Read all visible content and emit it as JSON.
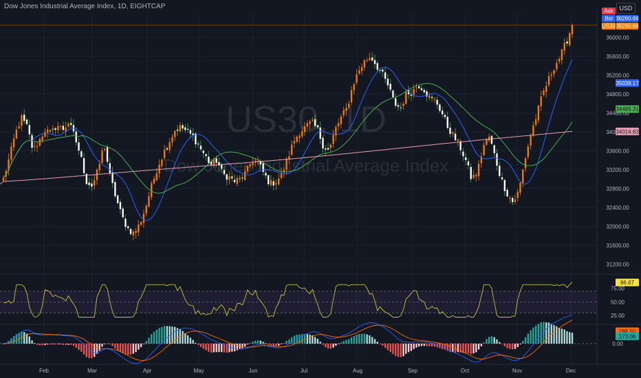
{
  "header": {
    "title": "Dow Jones Industrial Average Index, 1D, EIGHTCAP",
    "currency": "USD"
  },
  "watermark": {
    "symbol": "US30, 1D",
    "name": "Dow Jones Industrial Average Index"
  },
  "quote_tags": [
    {
      "label": "Ask",
      "value": "",
      "color": "#f23645"
    },
    {
      "label": "Bid",
      "value": "36260.66",
      "color": "#2962ff"
    },
    {
      "label": "US30",
      "value": "36260.66",
      "color": "#f57c00"
    }
  ],
  "colors": {
    "up": "#f57c00",
    "down": "#ffffff",
    "ma_fast": "#2962ff",
    "ma_mid": "#4caf50",
    "ma_slow": "#e8a0b0",
    "rsi": "#c9c23a",
    "macd": "#2962ff",
    "signal": "#ff6d00"
  },
  "chart_data": [
    {
      "type": "candlestick",
      "title": "Dow Jones Industrial Average Index, 1D, EIGHTCAP",
      "x_ticks": [
        "Feb",
        "Mar",
        "Apr",
        "May",
        "Jun",
        "Jul",
        "Aug",
        "Sep",
        "Oct",
        "Nov",
        "Dec"
      ],
      "y_ticks": [
        "36000.00",
        "35600.00",
        "35200.00",
        "34800.00",
        "34400.00",
        "34000.00",
        "33600.00",
        "33200.00",
        "32800.00",
        "32400.00",
        "32000.00",
        "31600.00",
        "31200.00"
      ],
      "ylim": [
        31000,
        36500
      ],
      "close_path": [
        33000,
        33450,
        33950,
        34300,
        34100,
        33600,
        33800,
        34050,
        33950,
        34150,
        34050,
        34200,
        33900,
        33500,
        32950,
        32850,
        33200,
        33750,
        33050,
        32600,
        32200,
        31950,
        31850,
        32050,
        32400,
        32850,
        33250,
        33550,
        33800,
        34050,
        34100,
        34000,
        33900,
        33700,
        33500,
        33300,
        33400,
        33100,
        33050,
        32950,
        33000,
        33150,
        33400,
        33350,
        33100,
        32900,
        32950,
        33100,
        33450,
        33800,
        34000,
        34100,
        34200,
        34050,
        33700,
        33600,
        34050,
        34300,
        34500,
        35000,
        35300,
        35500,
        35600,
        35400,
        35200,
        34950,
        34600,
        34500,
        34800,
        34850,
        35000,
        34900,
        34700,
        34650,
        34400,
        34100,
        33900,
        33700,
        33400,
        33000,
        33150,
        33700,
        33900,
        33450,
        33000,
        32700,
        32500,
        32750,
        33400,
        33950,
        34350,
        34800,
        35100,
        35400,
        35600,
        35900,
        36260.66
      ],
      "current_price": 36260.66,
      "ma_labels": [
        "35039.17",
        "34489.31",
        "34014.83"
      ],
      "ma_label_values": [
        35039.17,
        34489.31,
        34014.83
      ],
      "ma_last_values": [
        35000,
        34500,
        34010
      ],
      "ma_slow_start": 32950
    },
    {
      "type": "line",
      "name": "RSI",
      "y_ticks": [
        "75.00",
        "50.00",
        "25.00"
      ],
      "ylim": [
        10,
        100
      ],
      "band": [
        30,
        70
      ],
      "last_value": 86.67,
      "last_label": "86.67"
    },
    {
      "type": "bar",
      "name": "MACD",
      "y_ticks": [
        "0.00"
      ],
      "labels": [
        "288.50",
        "173.06"
      ],
      "label_values": [
        288.5,
        173.06
      ],
      "ylim": [
        -450,
        420
      ]
    }
  ]
}
